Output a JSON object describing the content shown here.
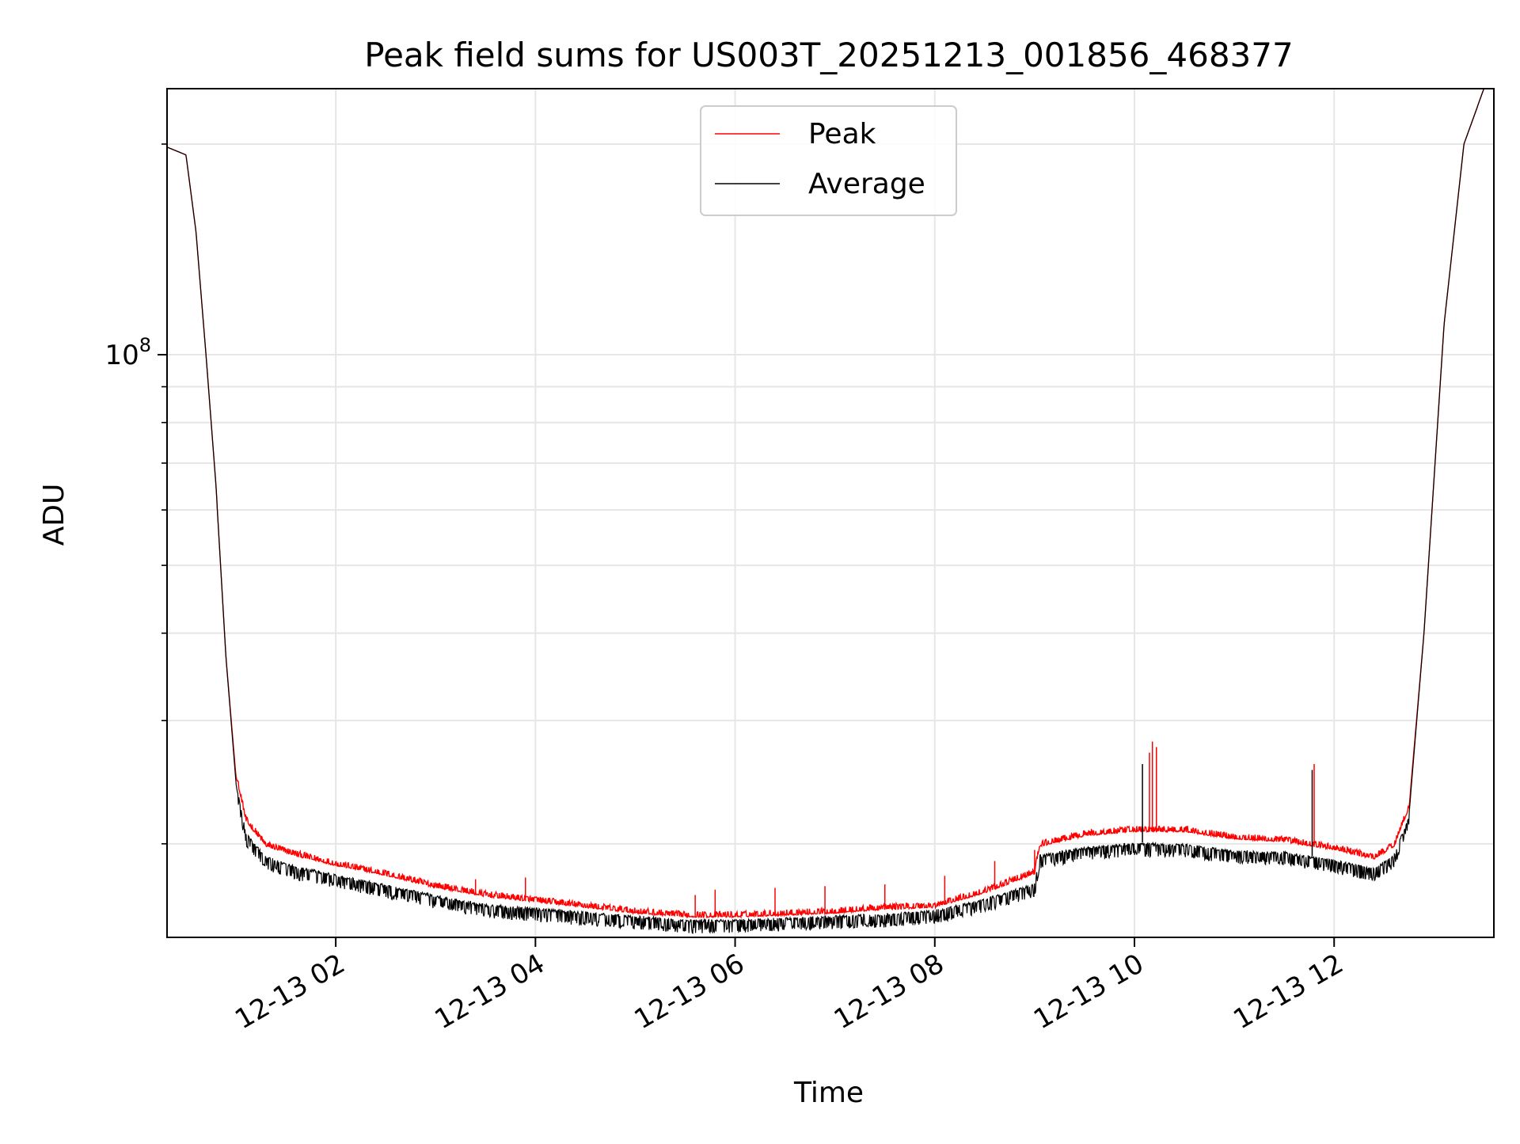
{
  "chart_data": {
    "type": "line",
    "title": "Peak field sums for US003T_20251213_001856_468377",
    "xlabel": "Time",
    "ylabel": "ADU",
    "yscale": "log",
    "xlim": [
      0.31,
      13.6
    ],
    "ylim": [
      14700000,
      240000000
    ],
    "grid": true,
    "legend_position": "top-center",
    "x_ticks": [
      {
        "value": 2,
        "label": "12-13 02"
      },
      {
        "value": 4,
        "label": "12-13 04"
      },
      {
        "value": 6,
        "label": "12-13 06"
      },
      {
        "value": 8,
        "label": "12-13 08"
      },
      {
        "value": 10,
        "label": "12-13 10"
      },
      {
        "value": 12,
        "label": "12-13 12"
      }
    ],
    "y_ticks": [
      {
        "value": 100000000,
        "mantissa": "10",
        "exponent": "8"
      }
    ],
    "x_unit": "hours after 2025-12-13 00:00",
    "series": [
      {
        "name": "Peak",
        "color": "#ff0000",
        "baseline": [
          [
            0.31,
            198000000
          ],
          [
            0.5,
            193000000
          ],
          [
            0.6,
            150000000
          ],
          [
            0.7,
            100000000
          ],
          [
            0.8,
            65000000
          ],
          [
            0.9,
            37000000
          ],
          [
            1.0,
            25000000
          ],
          [
            1.1,
            21500000
          ],
          [
            1.3,
            19800000
          ],
          [
            1.6,
            19200000
          ],
          [
            2.0,
            18600000
          ],
          [
            2.5,
            18000000
          ],
          [
            3.0,
            17300000
          ],
          [
            3.5,
            16800000
          ],
          [
            4.0,
            16500000
          ],
          [
            4.5,
            16200000
          ],
          [
            5.0,
            15900000
          ],
          [
            5.5,
            15700000
          ],
          [
            6.0,
            15700000
          ],
          [
            6.5,
            15800000
          ],
          [
            7.0,
            15900000
          ],
          [
            7.5,
            16100000
          ],
          [
            8.0,
            16200000
          ],
          [
            8.5,
            17000000
          ],
          [
            9.0,
            18100000
          ],
          [
            9.05,
            19800000
          ],
          [
            9.5,
            20500000
          ],
          [
            10.0,
            20800000
          ],
          [
            10.5,
            20800000
          ],
          [
            11.0,
            20300000
          ],
          [
            11.5,
            20100000
          ],
          [
            12.0,
            19600000
          ],
          [
            12.4,
            19000000
          ],
          [
            12.6,
            19800000
          ],
          [
            12.75,
            22500000
          ],
          [
            12.9,
            40000000
          ],
          [
            13.1,
            110000000
          ],
          [
            13.3,
            200000000
          ],
          [
            13.5,
            240000000
          ],
          [
            13.6,
            240000000
          ]
        ],
        "spikes": [
          [
            3.4,
            17800000
          ],
          [
            3.9,
            17900000
          ],
          [
            5.6,
            16900000
          ],
          [
            5.8,
            17200000
          ],
          [
            6.4,
            17300000
          ],
          [
            6.9,
            17400000
          ],
          [
            7.5,
            17500000
          ],
          [
            8.1,
            18000000
          ],
          [
            8.6,
            18900000
          ],
          [
            9.0,
            19600000
          ],
          [
            10.15,
            27000000
          ],
          [
            10.18,
            28000000
          ],
          [
            10.22,
            27500000
          ],
          [
            11.8,
            26000000
          ]
        ]
      },
      {
        "name": "Average",
        "color": "#000000",
        "baseline": [
          [
            0.31,
            198000000
          ],
          [
            0.5,
            193000000
          ],
          [
            0.6,
            150000000
          ],
          [
            0.7,
            100000000
          ],
          [
            0.8,
            65000000
          ],
          [
            0.9,
            37000000
          ],
          [
            1.0,
            24500000
          ],
          [
            1.1,
            20800000
          ],
          [
            1.3,
            19200000
          ],
          [
            1.6,
            18600000
          ],
          [
            2.0,
            18100000
          ],
          [
            2.5,
            17500000
          ],
          [
            3.0,
            16900000
          ],
          [
            3.5,
            16400000
          ],
          [
            4.0,
            16200000
          ],
          [
            4.5,
            16000000
          ],
          [
            5.0,
            15800000
          ],
          [
            5.5,
            15600000
          ],
          [
            6.0,
            15600000
          ],
          [
            6.5,
            15700000
          ],
          [
            7.0,
            15800000
          ],
          [
            7.5,
            15900000
          ],
          [
            8.0,
            16100000
          ],
          [
            8.5,
            16700000
          ],
          [
            9.0,
            17600000
          ],
          [
            9.05,
            19300000
          ],
          [
            9.5,
            19800000
          ],
          [
            10.0,
            20100000
          ],
          [
            10.5,
            20000000
          ],
          [
            11.0,
            19600000
          ],
          [
            11.5,
            19500000
          ],
          [
            12.0,
            19000000
          ],
          [
            12.4,
            18500000
          ],
          [
            12.6,
            19300000
          ],
          [
            12.75,
            22000000
          ],
          [
            12.9,
            40000000
          ],
          [
            13.1,
            110000000
          ],
          [
            13.3,
            200000000
          ],
          [
            13.5,
            240000000
          ],
          [
            13.6,
            240000000
          ]
        ],
        "spikes": [
          [
            10.08,
            26000000
          ],
          [
            11.78,
            25500000
          ]
        ]
      }
    ]
  }
}
